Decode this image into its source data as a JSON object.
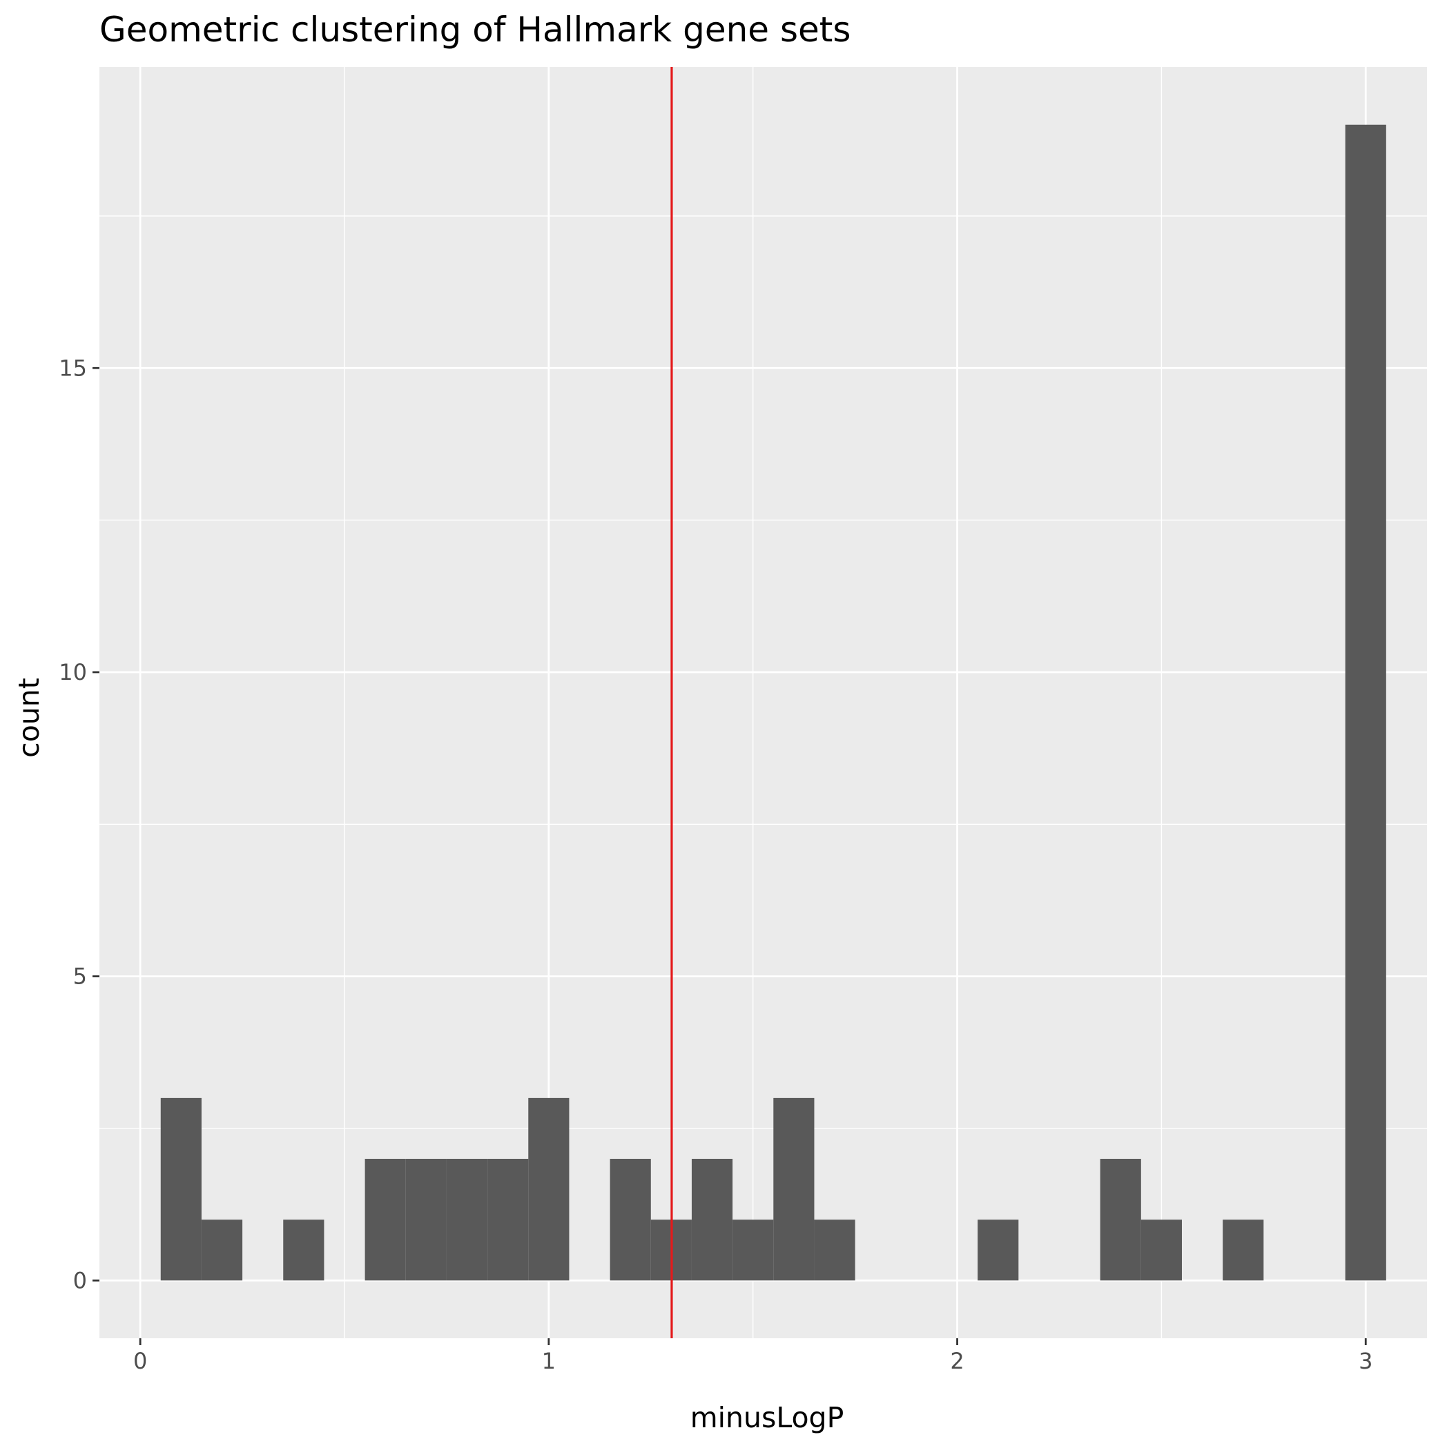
{
  "chart_data": {
    "type": "bar",
    "title": "Geometric clustering of Hallmark gene sets",
    "xlabel": "minusLogP",
    "ylabel": "count",
    "xlim": [
      -0.1,
      3.15
    ],
    "ylim": [
      -0.95,
      19.95
    ],
    "x_ticks": [
      0,
      1,
      2,
      3
    ],
    "y_ticks": [
      0,
      5,
      10,
      15
    ],
    "grid": true,
    "bin_width": 0.1,
    "bars": [
      {
        "x": 0.1,
        "count": 3
      },
      {
        "x": 0.2,
        "count": 1
      },
      {
        "x": 0.4,
        "count": 1
      },
      {
        "x": 0.6,
        "count": 2
      },
      {
        "x": 0.7,
        "count": 2
      },
      {
        "x": 0.8,
        "count": 2
      },
      {
        "x": 0.9,
        "count": 2
      },
      {
        "x": 1.0,
        "count": 3
      },
      {
        "x": 1.2,
        "count": 2
      },
      {
        "x": 1.3,
        "count": 1
      },
      {
        "x": 1.4,
        "count": 2
      },
      {
        "x": 1.5,
        "count": 1
      },
      {
        "x": 1.6,
        "count": 3
      },
      {
        "x": 1.7,
        "count": 1
      },
      {
        "x": 2.1,
        "count": 1
      },
      {
        "x": 2.4,
        "count": 2
      },
      {
        "x": 2.5,
        "count": 1
      },
      {
        "x": 2.7,
        "count": 1
      },
      {
        "x": 3.0,
        "count": 19
      }
    ],
    "reference_line": {
      "x": 1.301,
      "color": "#e41a1c"
    },
    "colors": {
      "bar": "#595959",
      "panel": "#ebebeb",
      "grid": "#ffffff",
      "tick": "#333333"
    }
  }
}
